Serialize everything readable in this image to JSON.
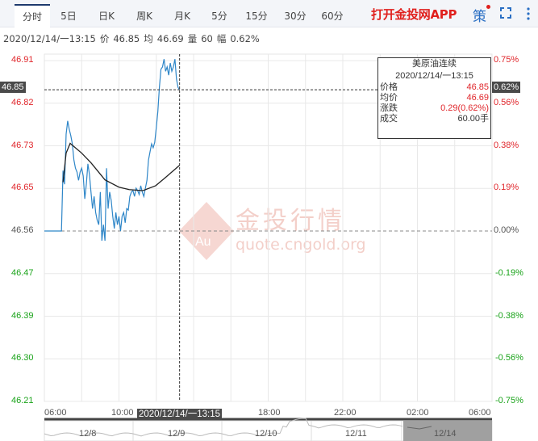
{
  "tabs": [
    {
      "label": "分时",
      "active": true
    },
    {
      "label": "5日"
    },
    {
      "label": "日K"
    },
    {
      "label": "周K"
    },
    {
      "label": "月K"
    },
    {
      "label": "5分"
    },
    {
      "label": "15分"
    },
    {
      "label": "30分"
    },
    {
      "label": "60分"
    }
  ],
  "toolbar": {
    "app_link": "打开金投网APP",
    "strategy": "策",
    "fullscreen_icon": "fullscreen-icon",
    "more_icon": "more-vertical-icon"
  },
  "info": {
    "time": "2020/12/14/一13:15",
    "price_label": "价",
    "price": "46.85",
    "avg_label": "均",
    "avg": "46.69",
    "vol_label": "量",
    "vol": "60",
    "amp_label": "幅",
    "amp": "0.62%"
  },
  "tooltip": {
    "title": "美原油连续",
    "time": "2020/12/14/一13:15",
    "rows": [
      {
        "label": "价格",
        "value": "46.85",
        "color": "red"
      },
      {
        "label": "均价",
        "value": "46.69",
        "color": "red"
      },
      {
        "label": "涨跌",
        "value": "0.29(0.62%)",
        "color": "red"
      },
      {
        "label": "成交",
        "value": "60.00手",
        "color": "black"
      }
    ]
  },
  "crosshair": {
    "price": "46.85",
    "pct": "0.62%",
    "time": "2020/12/14/一13:15"
  },
  "watermark": {
    "text": "金投行情",
    "url": "quote.cngold.org",
    "logo": "Au"
  },
  "navigator": {
    "dates": [
      "12/8",
      "12/9",
      "12/10",
      "12/11",
      "12/14"
    ],
    "selected": "12/14"
  },
  "colors": {
    "price_line": "#2e86c8",
    "avg_line": "#222222",
    "up": "#e0262b",
    "down": "#1aa31a",
    "brand": "#e0201d"
  },
  "chart_data": {
    "type": "line",
    "prev_close": 46.56,
    "ylim": [
      46.21,
      46.91
    ],
    "y_ticks": [
      "46.91",
      "46.82",
      "46.73",
      "46.65",
      "46.56",
      "46.47",
      "46.39",
      "46.30",
      "46.21"
    ],
    "pct_ticks": [
      "0.75%",
      "0.56%",
      "0.38%",
      "0.19%",
      "0.00%",
      "-0.19%",
      "-0.38%",
      "-0.56%",
      "-0.75%"
    ],
    "x_ticks": [
      "06:00",
      "10:00",
      "18:00",
      "22:00",
      "02:00",
      "06:00"
    ],
    "x_range": [
      "06:00",
      "06:00 (+1d)"
    ],
    "grid": true,
    "price_start": [
      {
        "t": "06:00",
        "p": 46.56
      },
      {
        "t": "06:55",
        "p": 46.56
      }
    ],
    "price_from": "07:00",
    "price_interval_min": 5,
    "price": [
      46.684,
      46.656,
      46.759,
      46.786,
      46.769,
      46.756,
      46.739,
      46.706,
      46.689,
      46.681,
      46.664,
      46.681,
      46.689,
      46.673,
      46.626,
      46.656,
      46.698,
      46.676,
      46.64,
      46.606,
      46.631,
      46.598,
      46.582,
      46.573,
      46.64,
      46.54,
      46.573,
      46.54,
      46.689,
      46.606,
      46.64,
      46.623,
      46.59,
      46.565,
      46.598,
      46.573,
      46.59,
      46.56,
      46.59,
      46.598,
      46.577,
      46.606,
      46.603,
      46.631,
      46.64,
      46.643,
      46.631,
      46.648,
      46.643,
      46.635,
      46.653,
      46.64,
      46.631,
      46.648,
      46.664,
      46.706,
      46.723,
      46.739,
      46.731,
      46.742,
      46.772,
      46.805,
      46.855,
      46.892,
      46.897,
      46.913,
      46.888,
      46.897,
      46.88,
      46.905,
      46.888,
      46.897,
      46.913,
      46.872,
      46.855,
      46.85
    ],
    "avg": [
      {
        "t": "07:00",
        "p": 46.66
      },
      {
        "t": "07:10",
        "p": 46.72
      },
      {
        "t": "07:23",
        "p": 46.74
      },
      {
        "t": "08:00",
        "p": 46.72
      },
      {
        "t": "08:30",
        "p": 46.7
      },
      {
        "t": "09:15",
        "p": 46.665
      },
      {
        "t": "10:00",
        "p": 46.65
      },
      {
        "t": "10:33",
        "p": 46.645
      },
      {
        "t": "11:17",
        "p": 46.643
      },
      {
        "t": "11:58",
        "p": 46.653
      },
      {
        "t": "12:30",
        "p": 46.67
      },
      {
        "t": "13:15",
        "p": 46.695
      }
    ]
  }
}
